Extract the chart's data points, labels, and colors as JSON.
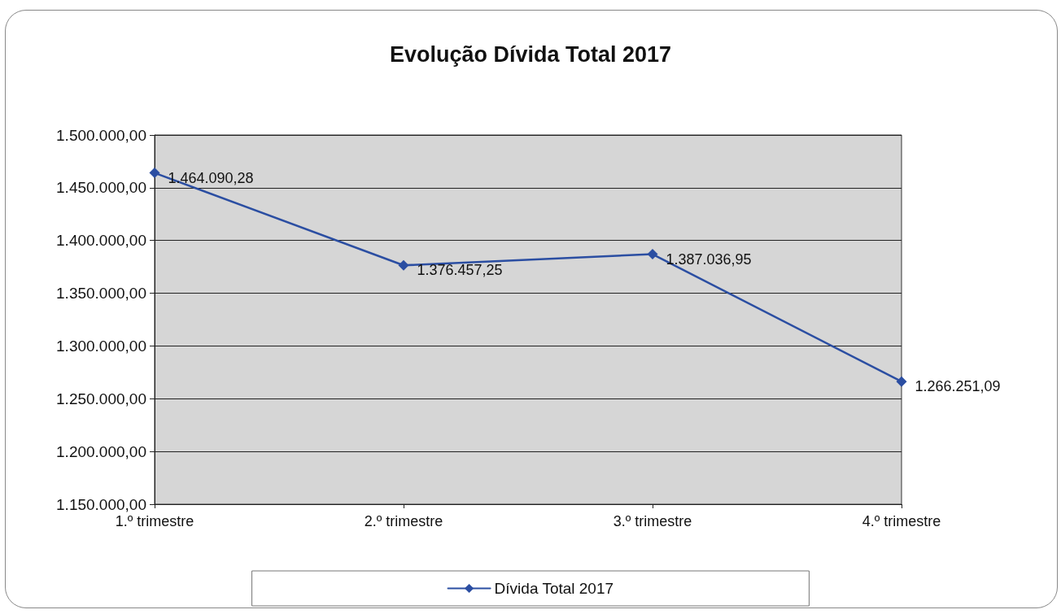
{
  "chart_data": {
    "type": "line",
    "title": "Evolução Dívida Total 2017",
    "categories": [
      "1.º trimestre",
      "2.º trimestre",
      "3.º trimestre",
      "4.º trimestre"
    ],
    "series": [
      {
        "name": "Dívida Total 2017",
        "color": "#2b4ea2",
        "values": [
          1464090.28,
          1376457.25,
          1387036.95,
          1266251.09
        ],
        "value_labels": [
          "1.464.090,28",
          "1.376.457,25",
          "1.387.036,95",
          "1.266.251,09"
        ]
      }
    ],
    "ylim": [
      1150000,
      1500000
    ],
    "yticks": [
      {
        "value": 1150000,
        "label": "1.150.000,00"
      },
      {
        "value": 1200000,
        "label": "1.200.000,00"
      },
      {
        "value": 1250000,
        "label": "1.250.000,00"
      },
      {
        "value": 1300000,
        "label": "1.300.000,00"
      },
      {
        "value": 1350000,
        "label": "1.350.000,00"
      },
      {
        "value": 1400000,
        "label": "1.400.000,00"
      },
      {
        "value": 1450000,
        "label": "1.450.000,00"
      },
      {
        "value": 1500000,
        "label": "1.500.000,00"
      }
    ],
    "grid": "y",
    "legend": "bottom",
    "marker": "diamond",
    "line_style": "solid"
  }
}
